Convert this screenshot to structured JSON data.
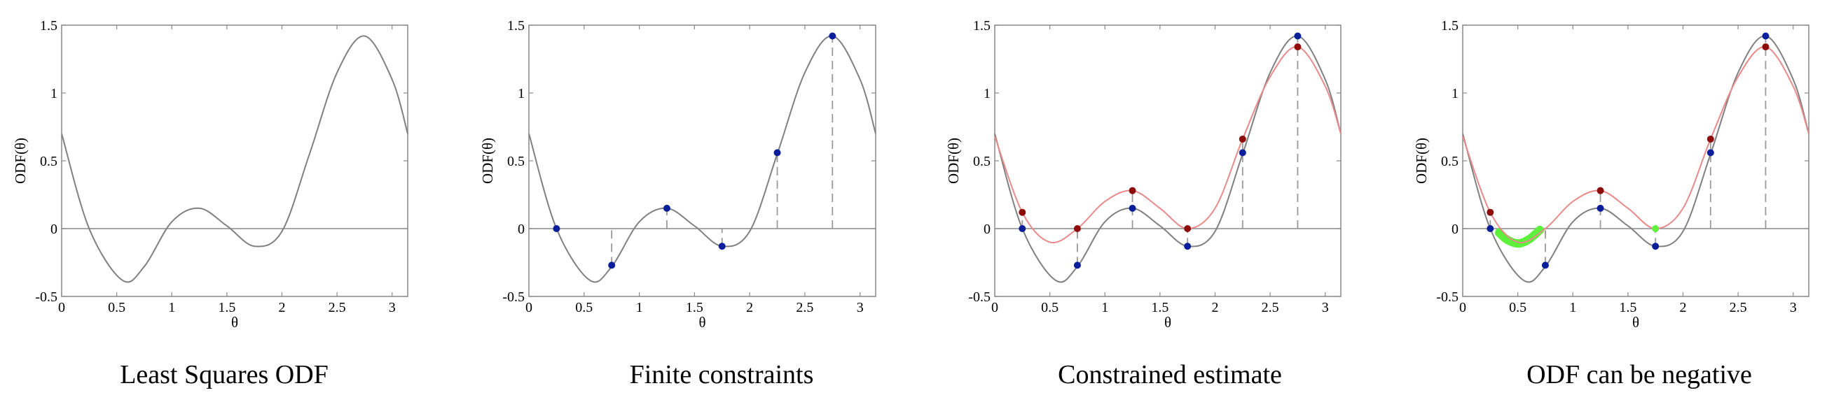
{
  "colors": {
    "ls_curve": "#808080",
    "constrained_curve": "#e88a8a",
    "blue_point": "#0a1e9c",
    "red_point": "#8e0b0b",
    "negative_region": "#5df13c",
    "axis": "#888888",
    "dashed": "#999999",
    "text": "#000000"
  },
  "chart_data": [
    {
      "type": "line",
      "title": "Least Squares ODF",
      "xlabel": "θ",
      "ylabel": "ODF(θ)",
      "xlim": [
        0,
        3.1416
      ],
      "ylim": [
        -0.5,
        1.5
      ],
      "xticks": [
        0,
        0.5,
        1,
        1.5,
        2,
        2.5,
        3
      ],
      "xtick_labels": [
        "0",
        "0.5",
        "1",
        "1.5",
        "2",
        "2.5",
        "3"
      ],
      "yticks": [
        -0.5,
        0,
        0.5,
        1,
        1.5
      ],
      "ytick_labels": [
        "-0.5",
        "0",
        "0.5",
        "1",
        "1.5"
      ],
      "grid": false,
      "series": [
        {
          "role": "ls",
          "x": [
            0,
            0.25,
            0.55,
            0.75,
            1.0,
            1.25,
            1.5,
            1.75,
            2.0,
            2.25,
            2.5,
            2.75,
            3.0,
            3.1416
          ],
          "values": [
            0.7,
            0.0,
            -0.38,
            -0.28,
            0.05,
            0.15,
            0.02,
            -0.13,
            -0.02,
            0.55,
            1.15,
            1.42,
            1.1,
            0.7
          ]
        }
      ]
    },
    {
      "type": "line",
      "title": "Finite constraints",
      "xlabel": "θ",
      "ylabel": "ODF(θ)",
      "xlim": [
        0,
        3.1416
      ],
      "ylim": [
        -0.5,
        1.5
      ],
      "xticks": [
        0,
        0.5,
        1,
        1.5,
        2,
        2.5,
        3
      ],
      "xtick_labels": [
        "0",
        "0.5",
        "1",
        "1.5",
        "2",
        "2.5",
        "3"
      ],
      "yticks": [
        -0.5,
        0,
        0.5,
        1,
        1.5
      ],
      "ytick_labels": [
        "-0.5",
        "0",
        "0.5",
        "1",
        "1.5"
      ],
      "grid": false,
      "series": [
        {
          "role": "ls",
          "x": [
            0,
            0.25,
            0.55,
            0.75,
            1.0,
            1.25,
            1.5,
            1.75,
            2.0,
            2.25,
            2.5,
            2.75,
            3.0,
            3.1416
          ],
          "values": [
            0.7,
            0.0,
            -0.38,
            -0.28,
            0.05,
            0.15,
            0.02,
            -0.13,
            -0.02,
            0.55,
            1.15,
            1.42,
            1.1,
            0.7
          ]
        },
        {
          "role": "blue_points",
          "x": [
            0.25,
            0.75,
            1.25,
            1.75,
            2.25,
            2.75
          ],
          "values": [
            0.0,
            -0.27,
            0.15,
            -0.13,
            0.56,
            1.42
          ]
        }
      ]
    },
    {
      "type": "line",
      "title": "Constrained estimate",
      "xlabel": "θ",
      "ylabel": "ODF(θ)",
      "xlim": [
        0,
        3.1416
      ],
      "ylim": [
        -0.5,
        1.5
      ],
      "xticks": [
        0,
        0.5,
        1,
        1.5,
        2,
        2.5,
        3
      ],
      "xtick_labels": [
        "0",
        "0.5",
        "1",
        "1.5",
        "2",
        "2.5",
        "3"
      ],
      "yticks": [
        -0.5,
        0,
        0.5,
        1,
        1.5
      ],
      "ytick_labels": [
        "-0.5",
        "0",
        "0.5",
        "1",
        "1.5"
      ],
      "grid": false,
      "series": [
        {
          "role": "ls",
          "x": [
            0,
            0.25,
            0.55,
            0.75,
            1.0,
            1.25,
            1.5,
            1.75,
            2.0,
            2.25,
            2.5,
            2.75,
            3.0,
            3.1416
          ],
          "values": [
            0.7,
            0.0,
            -0.38,
            -0.28,
            0.05,
            0.15,
            0.02,
            -0.13,
            -0.02,
            0.55,
            1.15,
            1.42,
            1.1,
            0.7
          ]
        },
        {
          "role": "constrained",
          "x": [
            0,
            0.25,
            0.5,
            0.75,
            1.0,
            1.25,
            1.5,
            1.75,
            2.0,
            2.25,
            2.5,
            2.75,
            3.0,
            3.1416
          ],
          "values": [
            0.68,
            0.12,
            -0.1,
            0.0,
            0.2,
            0.28,
            0.15,
            0.0,
            0.15,
            0.66,
            1.12,
            1.34,
            1.05,
            0.7
          ]
        },
        {
          "role": "blue_points",
          "x": [
            0.25,
            0.75,
            1.25,
            1.75,
            2.25,
            2.75
          ],
          "values": [
            0.0,
            -0.27,
            0.15,
            -0.13,
            0.56,
            1.42
          ]
        },
        {
          "role": "red_points",
          "x": [
            0.25,
            0.75,
            1.25,
            1.75,
            2.25,
            2.75
          ],
          "values": [
            0.12,
            0.0,
            0.28,
            0.0,
            0.66,
            1.34
          ]
        }
      ]
    },
    {
      "type": "line",
      "title": "ODF can be negative",
      "xlabel": "θ",
      "ylabel": "ODF(θ)",
      "xlim": [
        0,
        3.1416
      ],
      "ylim": [
        -0.5,
        1.5
      ],
      "xticks": [
        0,
        0.5,
        1,
        1.5,
        2,
        2.5,
        3
      ],
      "xtick_labels": [
        "0",
        "0.5",
        "1",
        "1.5",
        "2",
        "2.5",
        "3"
      ],
      "yticks": [
        -0.5,
        0,
        0.5,
        1,
        1.5
      ],
      "ytick_labels": [
        "-0.5",
        "0",
        "0.5",
        "1",
        "1.5"
      ],
      "grid": false,
      "series": [
        {
          "role": "ls",
          "x": [
            0,
            0.25,
            0.55,
            0.75,
            1.0,
            1.25,
            1.5,
            1.75,
            2.0,
            2.25,
            2.5,
            2.75,
            3.0,
            3.1416
          ],
          "values": [
            0.7,
            0.0,
            -0.38,
            -0.28,
            0.05,
            0.15,
            0.02,
            -0.13,
            -0.02,
            0.55,
            1.15,
            1.42,
            1.1,
            0.7
          ]
        },
        {
          "role": "constrained",
          "x": [
            0,
            0.25,
            0.5,
            0.75,
            1.0,
            1.25,
            1.5,
            1.75,
            2.0,
            2.25,
            2.5,
            2.75,
            3.0,
            3.1416
          ],
          "values": [
            0.68,
            0.12,
            -0.1,
            0.0,
            0.2,
            0.28,
            0.15,
            0.0,
            0.15,
            0.66,
            1.12,
            1.34,
            1.05,
            0.7
          ]
        },
        {
          "role": "negative_region",
          "x": [
            0.33,
            0.4,
            0.5,
            0.6,
            0.7
          ],
          "values": [
            -0.03,
            -0.08,
            -0.11,
            -0.08,
            -0.01
          ]
        },
        {
          "role": "green_point",
          "x": [
            1.75
          ],
          "values": [
            0.0
          ]
        },
        {
          "role": "blue_points",
          "x": [
            0.25,
            0.75,
            1.25,
            1.75,
            2.25,
            2.75
          ],
          "values": [
            0.0,
            -0.27,
            0.15,
            -0.13,
            0.56,
            1.42
          ]
        },
        {
          "role": "red_points",
          "x": [
            0.25,
            1.25,
            2.25,
            2.75
          ],
          "values": [
            0.12,
            0.28,
            0.66,
            1.34
          ]
        }
      ]
    }
  ]
}
